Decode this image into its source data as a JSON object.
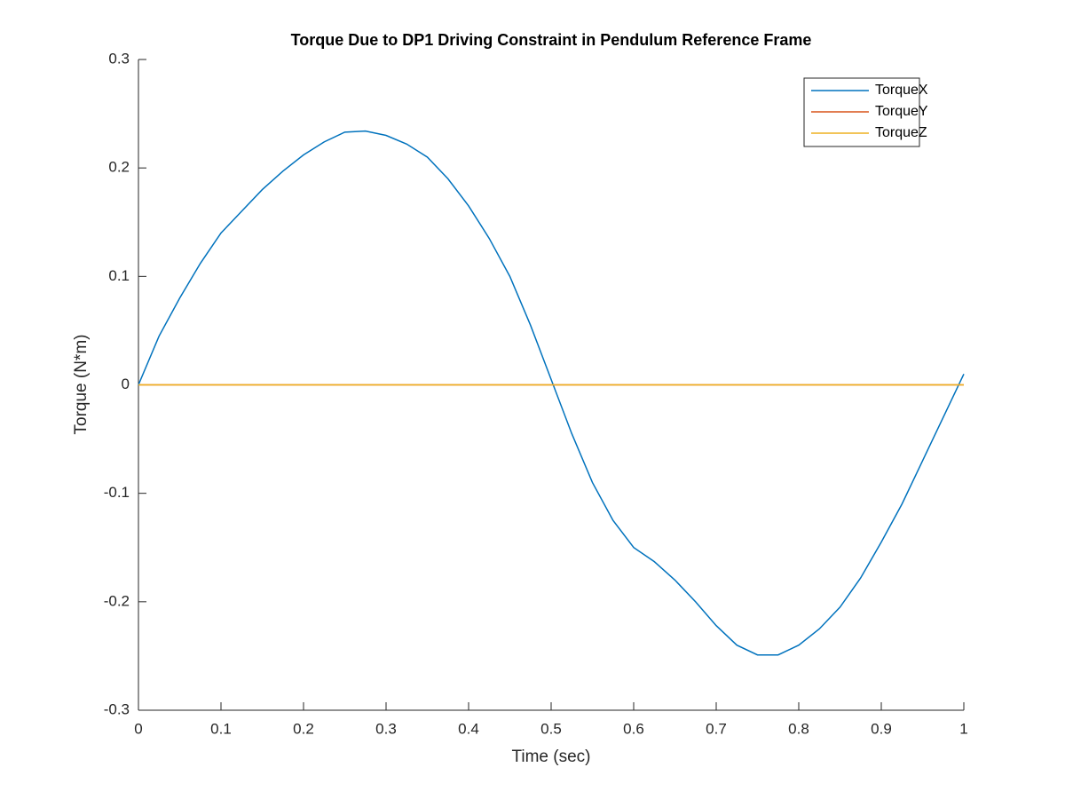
{
  "chart_data": {
    "type": "line",
    "title": "Torque Due to DP1 Driving Constraint in Pendulum Reference Frame",
    "x_label": "Time (sec)",
    "y_label": "Torque (N*m)",
    "x": [
      0,
      0.025,
      0.05,
      0.075,
      0.1,
      0.125,
      0.15,
      0.175,
      0.2,
      0.225,
      0.25,
      0.275,
      0.3,
      0.325,
      0.35,
      0.375,
      0.4,
      0.425,
      0.45,
      0.475,
      0.5,
      0.525,
      0.55,
      0.575,
      0.6,
      0.625,
      0.65,
      0.675,
      0.7,
      0.725,
      0.75,
      0.775,
      0.8,
      0.825,
      0.85,
      0.875,
      0.9,
      0.925,
      0.95,
      0.975,
      1
    ],
    "series": [
      {
        "name": "TorqueX",
        "color": "#0072bd",
        "values": [
          0,
          0.045,
          0.08,
          0.112,
          0.14,
          0.16,
          0.18,
          0.197,
          0.212,
          0.224,
          0.233,
          0.234,
          0.23,
          0.222,
          0.21,
          0.19,
          0.165,
          0.135,
          0.1,
          0.055,
          0.005,
          -0.045,
          -0.09,
          -0.125,
          -0.15,
          -0.163,
          -0.18,
          -0.2,
          -0.222,
          -0.24,
          -0.249,
          -0.249,
          -0.24,
          -0.225,
          -0.205,
          -0.178,
          -0.145,
          -0.11,
          -0.07,
          -0.03,
          0.01
        ]
      },
      {
        "name": "TorqueY",
        "color": "#d95319",
        "values": [
          0,
          0,
          0,
          0,
          0,
          0,
          0,
          0,
          0,
          0,
          0,
          0,
          0,
          0,
          0,
          0,
          0,
          0,
          0,
          0,
          0,
          0,
          0,
          0,
          0,
          0,
          0,
          0,
          0,
          0,
          0,
          0,
          0,
          0,
          0,
          0,
          0,
          0,
          0,
          0,
          0
        ]
      },
      {
        "name": "TorqueZ",
        "color": "#edb120",
        "values": [
          0,
          0,
          0,
          0,
          0,
          0,
          0,
          0,
          0,
          0,
          0,
          0,
          0,
          0,
          0,
          0,
          0,
          0,
          0,
          0,
          0,
          0,
          0,
          0,
          0,
          0,
          0,
          0,
          0,
          0,
          0,
          0,
          0,
          0,
          0,
          0,
          0,
          0,
          0,
          0,
          0
        ]
      }
    ],
    "xlim": [
      0,
      1
    ],
    "xticks": [
      0,
      0.1,
      0.2,
      0.3,
      0.4,
      0.5,
      0.6,
      0.7,
      0.8,
      0.9,
      1
    ],
    "ylim": [
      -0.3,
      0.3
    ],
    "yticks": [
      -0.3,
      -0.2,
      -0.1,
      0,
      0.1,
      0.2,
      0.3
    ],
    "legend": "top-right"
  }
}
